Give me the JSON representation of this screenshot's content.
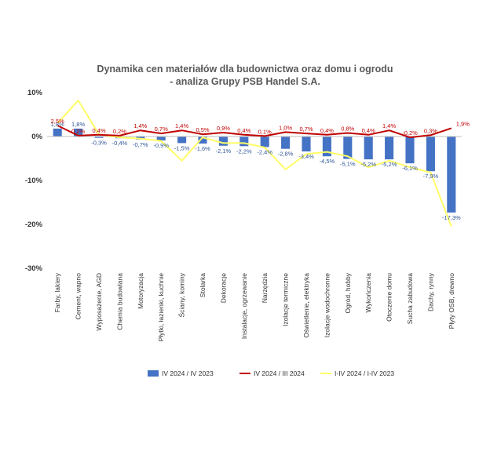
{
  "chart_data": {
    "type": "bar",
    "title_line1": "Dynamika cen materiałów dla budownictwa oraz domu i ogrodu",
    "title_line2": "- analiza Grupy PSB Handel S.A.",
    "ylim": [
      -30,
      10
    ],
    "yticks": [
      10,
      0,
      -10,
      -20,
      -30
    ],
    "ytick_labels": [
      "10%",
      "0%",
      "-10%",
      "-20%",
      "-30%"
    ],
    "grid": false,
    "legend_position": "bottom",
    "categories": [
      "Farby, lakiery",
      "Cement, wapno",
      "Wyposażenie, AGD",
      "Chemia budowlana",
      "Motoryzacja",
      "Płytki, łazienki, kuchnie",
      "Ściany, kominy",
      "Stolarka",
      "Dekoracje",
      "Instalacje, ogrzewanie",
      "Narzędzia",
      "Izolacje termiczne",
      "Oświetlenie, elektryka",
      "Izolacje wodochronne",
      "Ogród, hobby",
      "Wykończenia",
      "Otoczenie domu",
      "Sucha zabudowa",
      "Dachy, rynny",
      "Płyty OSB, drewno"
    ],
    "series": [
      {
        "name": "IV 2024 / IV 2023",
        "type": "bar",
        "color": "#4472C4",
        "values": [
          1.8,
          1.8,
          -0.3,
          -0.4,
          -0.7,
          -0.9,
          -1.5,
          -1.6,
          -2.1,
          -2.2,
          -2.4,
          -2.8,
          -3.4,
          -4.5,
          -5.1,
          -5.2,
          -5.2,
          -6.1,
          -7.9,
          -17.3
        ],
        "labels": [
          "1,8%",
          "1,8%",
          "-0,3%",
          "-0,4%",
          "-0,7%",
          "-0,9%",
          "-1,5%",
          "-1,6%",
          "-2,1%",
          "-2,2%",
          "-2,4%",
          "-2,8%",
          "-3,4%",
          "-4,5%",
          "-5,1%",
          "-5,2%",
          "-5,2%",
          "-6,1%",
          "-7,9%",
          "-17,3%"
        ]
      },
      {
        "name": "IV 2024 / III 2024",
        "type": "line",
        "color": "#C00000",
        "values": [
          2.5,
          0.2,
          0.4,
          0.2,
          1.4,
          0.7,
          1.4,
          0.5,
          0.9,
          0.4,
          0.1,
          1.0,
          0.7,
          0.4,
          0.8,
          0.4,
          1.4,
          -0.2,
          0.3,
          1.9
        ],
        "labels": [
          "2,5%",
          "0,2%",
          "0,4%",
          "0,2%",
          "1,4%",
          "0,7%",
          "1,4%",
          "0,5%",
          "0,9%",
          "0,4%",
          "0,1%",
          "1,0%",
          "0,7%",
          "0,4%",
          "0,8%",
          "0,4%",
          "1,4%",
          "-0,2%",
          "0,3%",
          "1,9%"
        ]
      },
      {
        "name": "I-IV 2024 / I-IV 2023",
        "type": "line",
        "color": "#FFFF66",
        "values": [
          3.0,
          8.2,
          0.5,
          -0.2,
          -0.5,
          -1.0,
          -5.5,
          -0.2,
          -1.5,
          -1.5,
          -2.5,
          -7.5,
          -4.0,
          -3.5,
          -4.5,
          -7.0,
          -5.5,
          -7.0,
          -8.2,
          -20.5
        ]
      }
    ]
  }
}
